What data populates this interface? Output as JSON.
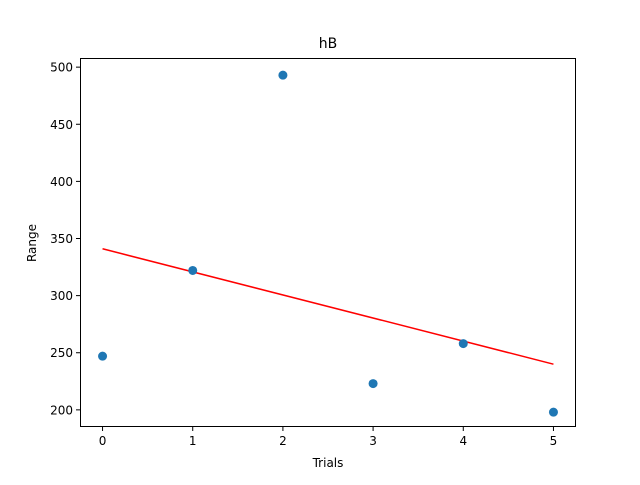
{
  "chart_data": {
    "type": "scatter",
    "title": "hB",
    "xlabel": "Trials",
    "ylabel": "Range",
    "xlim": [
      -0.25,
      5.25
    ],
    "ylim": [
      185,
      508
    ],
    "xticks": [
      0,
      1,
      2,
      3,
      4,
      5
    ],
    "yticks": [
      200,
      250,
      300,
      350,
      400,
      450,
      500
    ],
    "grid": false,
    "series": [
      {
        "kind": "scatter",
        "color": "#1f77b4",
        "x": [
          0,
          1,
          2,
          3,
          4,
          5
        ],
        "y": [
          247,
          322,
          493,
          223,
          258,
          198
        ]
      },
      {
        "kind": "line",
        "color": "#ff0000",
        "x": [
          0,
          5
        ],
        "y": [
          341,
          240
        ]
      }
    ]
  }
}
